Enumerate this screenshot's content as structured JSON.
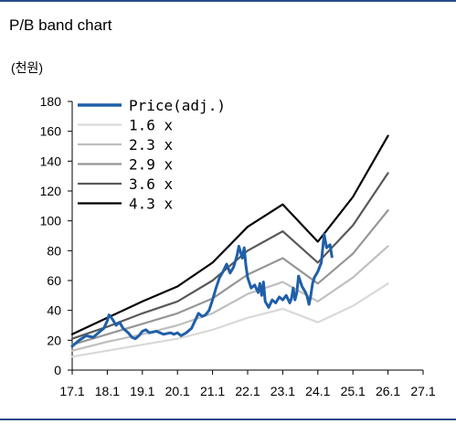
{
  "title": "P/B band chart",
  "unit": "(천원)",
  "chart_data": {
    "type": "line",
    "title": "P/B band chart",
    "ylabel": "(천원)",
    "xlabel": "",
    "ylim": [
      0,
      180
    ],
    "yticks": [
      0,
      20,
      40,
      60,
      80,
      100,
      120,
      140,
      160,
      180
    ],
    "xlim": [
      17.1,
      27.1
    ],
    "xtick_labels": [
      "17.1",
      "18.1",
      "19.1",
      "20.1",
      "21.1",
      "22.1",
      "23.1",
      "24.1",
      "25.1",
      "26.1",
      "27.1"
    ],
    "grid": false,
    "legend_position": "top-left",
    "series": [
      {
        "name": "Price(adj.)",
        "color": "#1f5fa8",
        "points": [
          [
            17.1,
            16
          ],
          [
            17.3,
            20
          ],
          [
            17.5,
            23
          ],
          [
            17.7,
            22
          ],
          [
            17.9,
            26
          ],
          [
            18.0,
            28
          ],
          [
            18.1,
            33
          ],
          [
            18.15,
            37
          ],
          [
            18.25,
            34
          ],
          [
            18.35,
            30
          ],
          [
            18.45,
            32
          ],
          [
            18.55,
            28
          ],
          [
            18.7,
            25
          ],
          [
            18.8,
            22
          ],
          [
            18.9,
            21
          ],
          [
            19.0,
            23
          ],
          [
            19.1,
            26
          ],
          [
            19.2,
            27
          ],
          [
            19.3,
            25
          ],
          [
            19.5,
            26
          ],
          [
            19.7,
            24
          ],
          [
            19.9,
            25
          ],
          [
            20.0,
            24
          ],
          [
            20.1,
            25
          ],
          [
            20.2,
            23
          ],
          [
            20.35,
            25
          ],
          [
            20.5,
            28
          ],
          [
            20.6,
            33
          ],
          [
            20.7,
            38
          ],
          [
            20.8,
            36
          ],
          [
            20.9,
            37
          ],
          [
            21.0,
            40
          ],
          [
            21.1,
            47
          ],
          [
            21.2,
            55
          ],
          [
            21.3,
            62
          ],
          [
            21.4,
            66
          ],
          [
            21.5,
            71
          ],
          [
            21.6,
            65
          ],
          [
            21.7,
            69
          ],
          [
            21.8,
            77
          ],
          [
            21.85,
            83
          ],
          [
            21.95,
            75
          ],
          [
            22.0,
            82
          ],
          [
            22.05,
            70
          ],
          [
            22.1,
            62
          ],
          [
            22.2,
            55
          ],
          [
            22.3,
            57
          ],
          [
            22.4,
            52
          ],
          [
            22.45,
            58
          ],
          [
            22.5,
            50
          ],
          [
            22.55,
            59
          ],
          [
            22.6,
            46
          ],
          [
            22.7,
            42
          ],
          [
            22.8,
            47
          ],
          [
            22.9,
            45
          ],
          [
            23.0,
            49
          ],
          [
            23.1,
            47
          ],
          [
            23.2,
            50
          ],
          [
            23.3,
            45
          ],
          [
            23.35,
            48
          ],
          [
            23.4,
            55
          ],
          [
            23.45,
            47
          ],
          [
            23.5,
            52
          ],
          [
            23.55,
            63
          ],
          [
            23.65,
            56
          ],
          [
            23.75,
            52
          ],
          [
            23.8,
            49
          ],
          [
            23.85,
            44
          ],
          [
            23.9,
            50
          ],
          [
            23.95,
            58
          ],
          [
            24.0,
            62
          ],
          [
            24.05,
            64
          ],
          [
            24.1,
            66
          ],
          [
            24.2,
            72
          ],
          [
            24.28,
            91
          ],
          [
            24.35,
            82
          ],
          [
            24.45,
            84
          ],
          [
            24.5,
            76
          ]
        ]
      },
      {
        "name": "1.6 x",
        "color": "#d9d9d9",
        "points": [
          [
            17.1,
            9
          ],
          [
            18.1,
            13
          ],
          [
            19.1,
            17
          ],
          [
            20.1,
            21
          ],
          [
            21.1,
            27
          ],
          [
            22.1,
            35
          ],
          [
            23.1,
            41
          ],
          [
            24.1,
            32
          ],
          [
            25.1,
            43
          ],
          [
            26.1,
            58
          ]
        ]
      },
      {
        "name": "2.3 x",
        "color": "#bfbfbf",
        "points": [
          [
            17.1,
            13
          ],
          [
            18.1,
            19
          ],
          [
            19.1,
            24
          ],
          [
            20.1,
            30
          ],
          [
            21.1,
            38
          ],
          [
            22.1,
            51
          ],
          [
            23.1,
            59
          ],
          [
            24.1,
            46
          ],
          [
            25.1,
            62
          ],
          [
            26.1,
            83
          ]
        ]
      },
      {
        "name": "2.9 x",
        "color": "#969696",
        "points": [
          [
            17.1,
            17
          ],
          [
            18.1,
            24
          ],
          [
            19.1,
            31
          ],
          [
            20.1,
            38
          ],
          [
            21.1,
            48
          ],
          [
            22.1,
            64
          ],
          [
            23.1,
            75
          ],
          [
            24.1,
            58
          ],
          [
            25.1,
            78
          ],
          [
            26.1,
            107
          ]
        ]
      },
      {
        "name": "3.6 x",
        "color": "#595959",
        "points": [
          [
            17.1,
            21
          ],
          [
            18.1,
            29
          ],
          [
            19.1,
            38
          ],
          [
            20.1,
            46
          ],
          [
            21.1,
            60
          ],
          [
            22.1,
            80
          ],
          [
            23.1,
            93
          ],
          [
            24.1,
            72
          ],
          [
            25.1,
            97
          ],
          [
            26.1,
            132
          ]
        ]
      },
      {
        "name": "4.3 x",
        "color": "#000000",
        "points": [
          [
            17.1,
            24
          ],
          [
            18.1,
            35
          ],
          [
            19.1,
            46
          ],
          [
            20.1,
            56
          ],
          [
            21.1,
            72
          ],
          [
            22.1,
            96
          ],
          [
            23.1,
            111
          ],
          [
            24.1,
            86
          ],
          [
            25.1,
            116
          ],
          [
            26.1,
            157
          ]
        ]
      }
    ]
  }
}
